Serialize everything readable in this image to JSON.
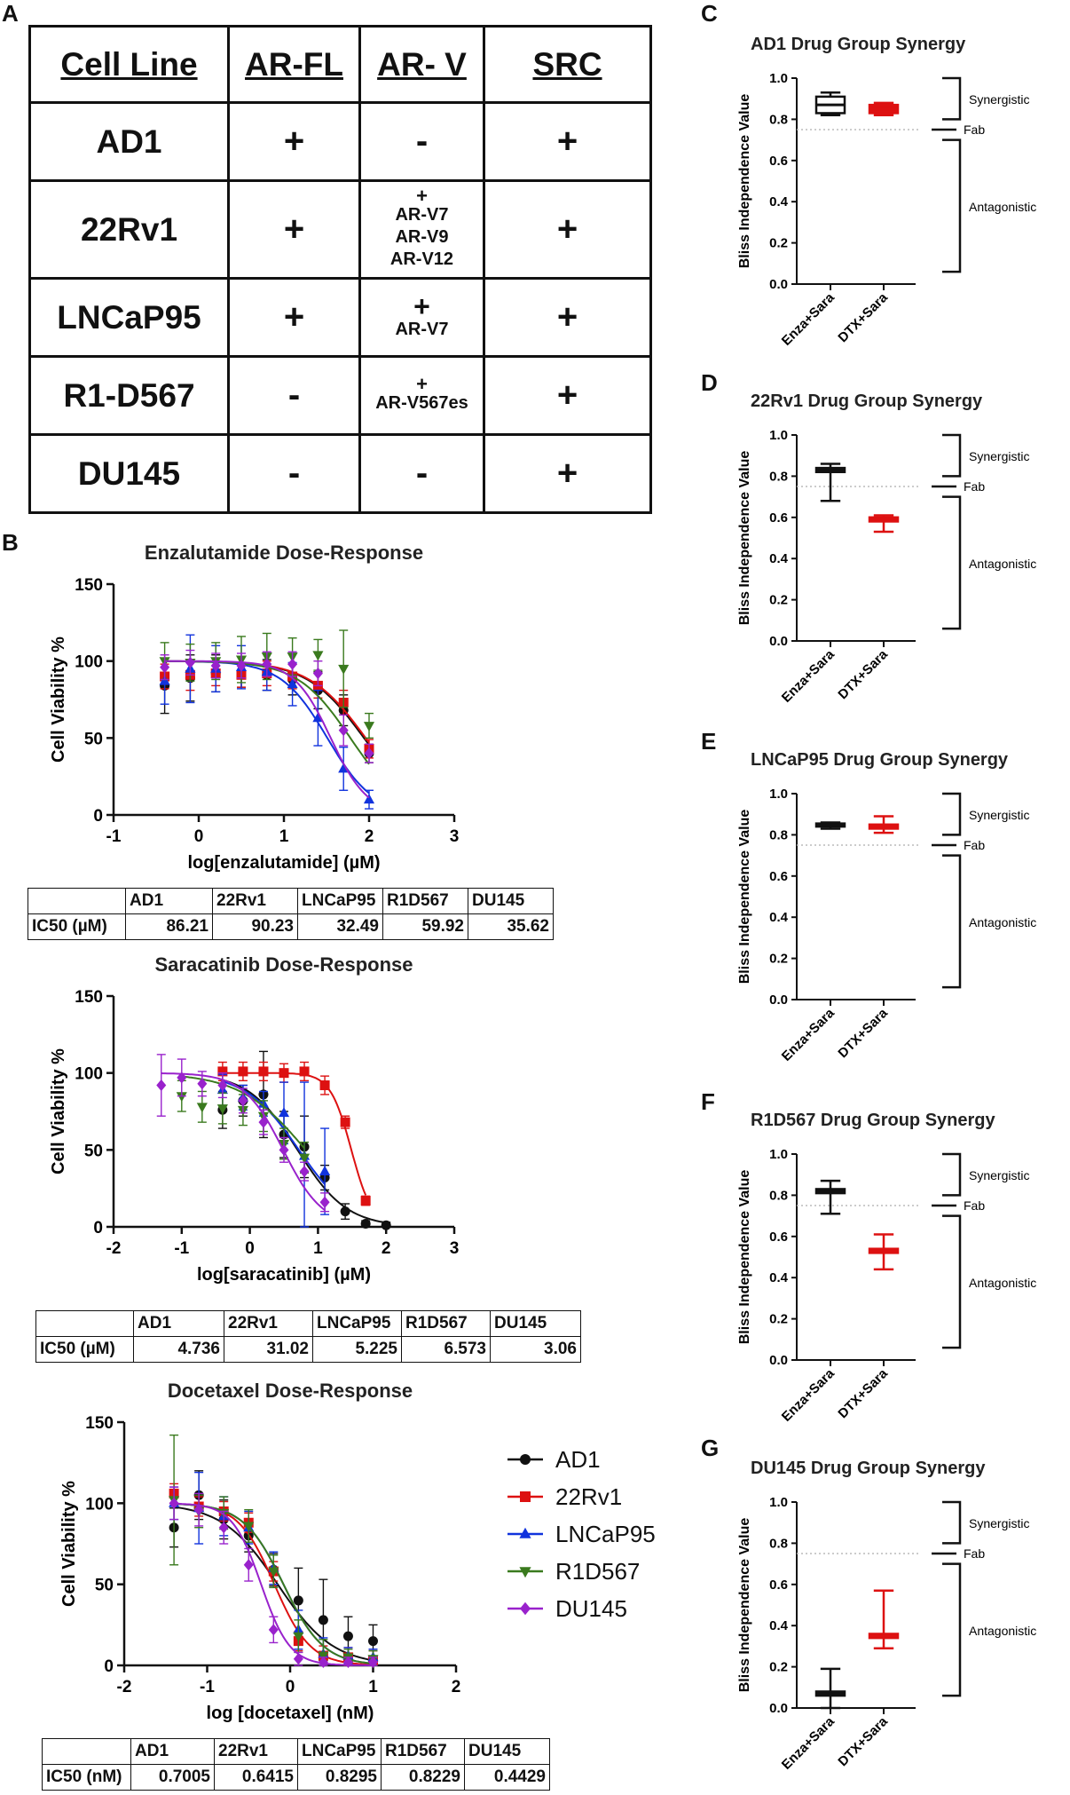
{
  "panel_labels": {
    "A": "A",
    "B": "B",
    "C": "C",
    "D": "D",
    "E": "E",
    "F": "F",
    "G": "G"
  },
  "table_a": {
    "headers": [
      "Cell Line",
      "AR-FL",
      "AR- V",
      "SRC"
    ],
    "rows": [
      {
        "cell": "AD1",
        "arfl": "+",
        "arv_sign": "-",
        "arv_variants": [],
        "src": "+"
      },
      {
        "cell": "22Rv1",
        "arfl": "+",
        "arv_sign": "+",
        "arv_variants": [
          "AR-V7",
          "AR-V9",
          "AR-V12"
        ],
        "src": "+"
      },
      {
        "cell": "LNCaP95",
        "arfl": "+",
        "arv_sign": "+",
        "arv_variants": [
          "AR-V7"
        ],
        "src": "+"
      },
      {
        "cell": "R1-D567",
        "arfl": "-",
        "arv_sign": "+",
        "arv_variants": [
          "AR-V567es"
        ],
        "src": "+"
      },
      {
        "cell": "DU145",
        "arfl": "-",
        "arv_sign": "-",
        "arv_variants": [],
        "src": "+"
      }
    ]
  },
  "ic50_tables": [
    {
      "row_label": "IC50 (µM)",
      "headers": [
        "AD1",
        "22Rv1",
        "LNCaP95",
        "R1D567",
        "DU145"
      ],
      "values": [
        "86.21",
        "90.23",
        "32.49",
        "59.92",
        "35.62"
      ]
    },
    {
      "row_label": "IC50 (µM)",
      "headers": [
        "AD1",
        "22Rv1",
        "LNCaP95",
        "R1D567",
        "DU145"
      ],
      "values": [
        "4.736",
        "31.02",
        "5.225",
        "6.573",
        "3.06"
      ]
    },
    {
      "row_label": "IC50 (nM)",
      "headers": [
        "AD1",
        "22Rv1",
        "LNCaP95",
        "R1D567",
        "DU145"
      ],
      "values": [
        "0.7005",
        "0.6415",
        "0.8295",
        "0.8229",
        "0.4429"
      ]
    }
  ],
  "legend": [
    {
      "name": "AD1",
      "color": "#111111",
      "marker": "circle"
    },
    {
      "name": "22Rv1",
      "color": "#dd1111",
      "marker": "square"
    },
    {
      "name": "LNCaP95",
      "color": "#1133dd",
      "marker": "triangle-up"
    },
    {
      "name": "R1D567",
      "color": "#3a7a1e",
      "marker": "triangle-down"
    },
    {
      "name": "DU145",
      "color": "#9922cc",
      "marker": "diamond"
    }
  ],
  "chart_data": [
    {
      "type": "line",
      "title": "Enzalutamide Dose-Response",
      "xlabel": "log[enzalutamide] (µM)",
      "ylabel": "Cell Viability %",
      "xlim": [
        -1,
        3
      ],
      "ylim": [
        0,
        150
      ],
      "xticks": [
        -1,
        0,
        1,
        2,
        3
      ],
      "yticks": [
        0,
        50,
        100,
        150
      ],
      "x": [
        -0.4,
        -0.1,
        0.2,
        0.5,
        0.8,
        1.1,
        1.4,
        1.7,
        2.0
      ],
      "series": [
        {
          "name": "AD1",
          "values": [
            84,
            89,
            92,
            93,
            91,
            88,
            81,
            68,
            40
          ],
          "errors": [
            18,
            15,
            12,
            10,
            10,
            10,
            12,
            10,
            6
          ],
          "ic50_log": 1.94,
          "hill": 1.3
        },
        {
          "name": "22Rv1",
          "values": [
            90,
            91,
            92,
            91,
            92,
            90,
            84,
            73,
            43
          ],
          "errors": [
            8,
            10,
            8,
            8,
            8,
            8,
            8,
            8,
            6
          ],
          "ic50_log": 1.96,
          "hill": 1.3
        },
        {
          "name": "LNCaP95",
          "values": [
            87,
            95,
            95,
            96,
            93,
            85,
            63,
            30,
            10
          ],
          "errors": [
            15,
            22,
            15,
            14,
            12,
            14,
            18,
            14,
            6
          ],
          "ic50_log": 1.51,
          "hill": 1.6
        },
        {
          "name": "R1D567",
          "values": [
            100,
            99,
            100,
            101,
            103,
            103,
            104,
            95,
            58
          ],
          "errors": [
            12,
            12,
            12,
            15,
            15,
            12,
            10,
            25,
            8
          ],
          "ic50_log": 1.78,
          "hill": 1.4
        },
        {
          "name": "DU145",
          "values": [
            96,
            99,
            97,
            97,
            98,
            98,
            92,
            55,
            40
          ],
          "errors": [
            8,
            8,
            8,
            8,
            8,
            8,
            8,
            10,
            6
          ],
          "ic50_log": 1.55,
          "hill": 2.0
        }
      ]
    },
    {
      "type": "line",
      "title": "Saracatinib Dose-Response",
      "xlabel": "log[saracatinib] (µM)",
      "ylabel": "Cell Viability %",
      "xlim": [
        -2,
        3
      ],
      "ylim": [
        0,
        150
      ],
      "xticks": [
        -2,
        -1,
        0,
        1,
        2,
        3
      ],
      "yticks": [
        0,
        50,
        100,
        150
      ],
      "series": [
        {
          "name": "AD1",
          "x": [
            -0.4,
            -0.1,
            0.2,
            0.5,
            0.8,
            1.1,
            1.4,
            1.7,
            2.0
          ],
          "values": [
            76,
            82,
            86,
            60,
            52,
            32,
            10,
            2,
            1
          ],
          "errors": [
            12,
            10,
            28,
            15,
            20,
            8,
            5,
            2,
            2
          ],
          "ic50_log": 0.7,
          "hill": 1.2
        },
        {
          "name": "22Rv1",
          "x": [
            -0.4,
            -0.1,
            0.2,
            0.5,
            0.8,
            1.1,
            1.4,
            1.7
          ],
          "values": [
            101,
            101,
            101,
            100,
            101,
            92,
            68,
            17
          ],
          "errors": [
            6,
            6,
            6,
            6,
            6,
            6,
            4,
            3
          ],
          "ic50_log": 1.49,
          "hill": 2.8
        },
        {
          "name": "LNCaP95",
          "x": [
            -0.4,
            -0.1,
            0.2,
            0.5,
            0.8,
            1.1
          ],
          "values": [
            89,
            84,
            80,
            74,
            46,
            36
          ],
          "errors": [
            10,
            8,
            8,
            20,
            48,
            28
          ],
          "ic50_log": 0.72,
          "hill": 1.1
        },
        {
          "name": "R1D567",
          "x": [
            -1.0,
            -0.7,
            -0.4,
            -0.1,
            0.2,
            0.5,
            0.8
          ],
          "values": [
            85,
            78,
            77,
            76,
            72,
            54,
            45
          ],
          "errors": [
            10,
            10,
            10,
            10,
            10,
            10,
            10
          ],
          "ic50_log": 0.82,
          "hill": 0.9
        },
        {
          "name": "DU145",
          "x": [
            -1.3,
            -1.0,
            -0.7,
            -0.4,
            -0.1,
            0.2,
            0.5,
            0.8,
            1.1
          ],
          "values": [
            92,
            97,
            93,
            92,
            82,
            68,
            50,
            36,
            16
          ],
          "errors": [
            20,
            12,
            8,
            8,
            8,
            8,
            8,
            6,
            6
          ],
          "ic50_log": 0.49,
          "hill": 1.5
        }
      ]
    },
    {
      "type": "line",
      "title": "Docetaxel Dose-Response",
      "xlabel": "log [docetaxel] (nM)",
      "ylabel": "Cell Viability %",
      "xlim": [
        -2,
        2
      ],
      "ylim": [
        0,
        150
      ],
      "xticks": [
        -2,
        -1,
        0,
        1,
        2
      ],
      "yticks": [
        0,
        50,
        100,
        150
      ],
      "x": [
        -1.4,
        -1.1,
        -0.8,
        -0.5,
        -0.2,
        0.1,
        0.4,
        0.7,
        1.0
      ],
      "series": [
        {
          "name": "AD1",
          "values": [
            85,
            105,
            90,
            80,
            59,
            40,
            28,
            18,
            15
          ],
          "errors": [
            12,
            15,
            12,
            10,
            10,
            20,
            25,
            12,
            10
          ],
          "ic50_log": -0.15,
          "hill": 1.3
        },
        {
          "name": "22Rv1",
          "values": [
            106,
            98,
            95,
            88,
            58,
            15,
            6,
            5,
            3
          ],
          "errors": [
            6,
            6,
            6,
            6,
            6,
            6,
            6,
            6,
            6
          ],
          "ic50_log": -0.19,
          "hill": 2.0
        },
        {
          "name": "LNCaP95",
          "values": [
            100,
            97,
            92,
            85,
            60,
            22,
            7,
            6,
            5
          ],
          "errors": [
            10,
            22,
            12,
            10,
            10,
            12,
            10,
            5,
            5
          ],
          "ic50_log": -0.08,
          "hill": 1.8
        },
        {
          "name": "R1D567",
          "values": [
            102,
            95,
            94,
            86,
            58,
            18,
            6,
            5,
            4
          ],
          "errors": [
            40,
            10,
            10,
            10,
            10,
            10,
            10,
            5,
            5
          ],
          "ic50_log": -0.08,
          "hill": 1.8
        },
        {
          "name": "DU145",
          "values": [
            100,
            96,
            85,
            62,
            22,
            4,
            2,
            2,
            2
          ],
          "errors": [
            10,
            10,
            10,
            10,
            8,
            4,
            3,
            3,
            3
          ],
          "ic50_log": -0.35,
          "hill": 2.5
        }
      ]
    },
    {
      "type": "box",
      "title": "AD1 Drug Group Synergy",
      "ylabel": "Bliss Independence Value",
      "ylim": [
        0,
        1.0
      ],
      "yticks": [
        0.0,
        0.2,
        0.4,
        0.6,
        0.8,
        1.0
      ],
      "categories": [
        "Enza+Sara",
        "DTX+Sara"
      ],
      "threshold": 0.75,
      "boxes": [
        {
          "min": 0.82,
          "q1": 0.83,
          "median": 0.87,
          "q3": 0.91,
          "max": 0.93,
          "color": "#111111",
          "fill": "#ffffff"
        },
        {
          "min": 0.82,
          "q1": 0.83,
          "median": 0.85,
          "q3": 0.87,
          "max": 0.88,
          "color": "#dd1111",
          "fill": "#dd1111"
        }
      ],
      "annotations": {
        "synergistic": "Synergistic",
        "fab": "Fab",
        "antagonistic": "Antagonistic"
      }
    },
    {
      "type": "box",
      "title": "22Rv1 Drug Group Synergy",
      "ylabel": "Bliss Independence Value",
      "ylim": [
        0,
        1.0
      ],
      "yticks": [
        0.0,
        0.2,
        0.4,
        0.6,
        0.8,
        1.0
      ],
      "categories": [
        "Enza+Sara",
        "DTX+Sara"
      ],
      "threshold": 0.75,
      "boxes": [
        {
          "min": 0.68,
          "q1": 0.82,
          "median": 0.83,
          "q3": 0.84,
          "max": 0.86,
          "color": "#111111",
          "fill": "#ffffff"
        },
        {
          "min": 0.53,
          "q1": 0.58,
          "median": 0.59,
          "q3": 0.6,
          "max": 0.61,
          "color": "#dd1111",
          "fill": "#dd1111"
        }
      ],
      "annotations": {
        "synergistic": "Synergistic",
        "fab": "Fab",
        "antagonistic": "Antagonistic"
      }
    },
    {
      "type": "box",
      "title": "LNCaP95 Drug Group Synergy",
      "ylabel": "Bliss Independence Value",
      "ylim": [
        0,
        1.0
      ],
      "yticks": [
        0.0,
        0.2,
        0.4,
        0.6,
        0.8,
        1.0
      ],
      "categories": [
        "Enza+Sara",
        "DTX+Sara"
      ],
      "threshold": 0.75,
      "boxes": [
        {
          "min": 0.83,
          "q1": 0.84,
          "median": 0.85,
          "q3": 0.855,
          "max": 0.86,
          "color": "#111111",
          "fill": "#ffffff"
        },
        {
          "min": 0.81,
          "q1": 0.83,
          "median": 0.84,
          "q3": 0.85,
          "max": 0.89,
          "color": "#dd1111",
          "fill": "#dd1111"
        }
      ],
      "annotations": {
        "synergistic": "Synergistic",
        "fab": "Fab",
        "antagonistic": "Antagonistic"
      }
    },
    {
      "type": "box",
      "title": "R1D567 Drug Group Synergy",
      "ylabel": "Bliss Independence Value",
      "ylim": [
        0,
        1.0
      ],
      "yticks": [
        0.0,
        0.2,
        0.4,
        0.6,
        0.8,
        1.0
      ],
      "categories": [
        "Enza+Sara",
        "DTX+Sara"
      ],
      "threshold": 0.75,
      "boxes": [
        {
          "min": 0.71,
          "q1": 0.81,
          "median": 0.82,
          "q3": 0.83,
          "max": 0.87,
          "color": "#111111",
          "fill": "#ffffff"
        },
        {
          "min": 0.44,
          "q1": 0.52,
          "median": 0.53,
          "q3": 0.54,
          "max": 0.61,
          "color": "#dd1111",
          "fill": "#dd1111"
        }
      ],
      "annotations": {
        "synergistic": "Synergistic",
        "fab": "Fab",
        "antagonistic": "Antagonistic"
      }
    },
    {
      "type": "box",
      "title": "DU145 Drug Group Synergy",
      "ylabel": "Bliss Independence Value",
      "ylim": [
        0,
        1.0
      ],
      "yticks": [
        0.0,
        0.2,
        0.4,
        0.6,
        0.8,
        1.0
      ],
      "categories": [
        "Enza+Sara",
        "DTX+Sara"
      ],
      "threshold": 0.75,
      "boxes": [
        {
          "min": 0.0,
          "q1": 0.06,
          "median": 0.07,
          "q3": 0.08,
          "max": 0.19,
          "color": "#111111",
          "fill": "#ffffff"
        },
        {
          "min": 0.29,
          "q1": 0.34,
          "median": 0.35,
          "q3": 0.36,
          "max": 0.57,
          "color": "#dd1111",
          "fill": "#dd1111"
        }
      ],
      "annotations": {
        "synergistic": "Synergistic",
        "fab": "Fab",
        "antagonistic": "Antagonistic"
      }
    }
  ]
}
